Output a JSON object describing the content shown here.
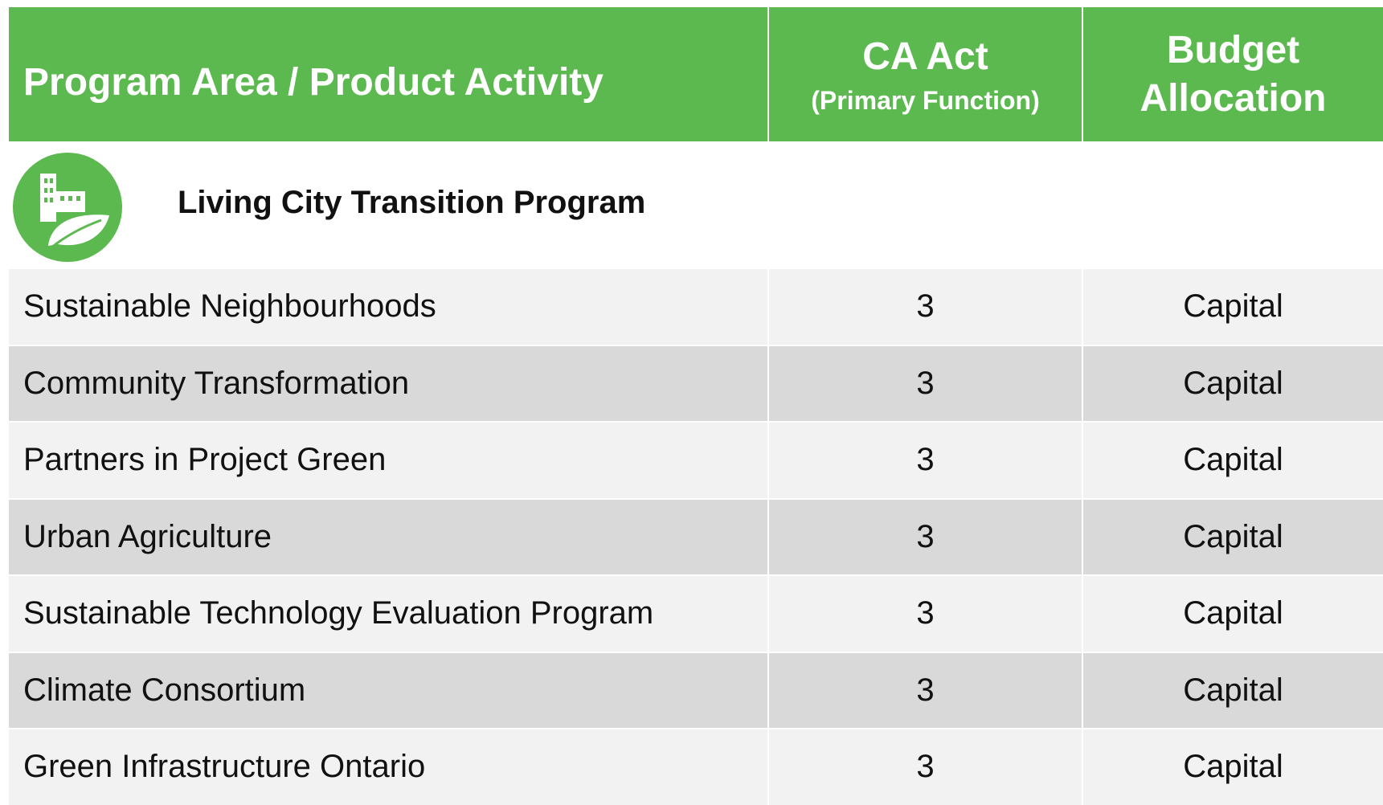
{
  "table": {
    "header": [
      {
        "title": "Program Area / Product Activity"
      },
      {
        "title": "CA Act",
        "subtitle": "(Primary Function)"
      },
      {
        "title": "Budget Allocation"
      }
    ],
    "section": "Living City Transition Program",
    "rows": [
      [
        "Sustainable Neighbourhoods",
        3,
        "Capital"
      ],
      [
        "Community Transformation",
        3,
        "Capital"
      ],
      [
        "Partners in Project Green",
        3,
        "Capital"
      ],
      [
        "Urban Agriculture",
        3,
        "Capital"
      ],
      [
        "Sustainable Technology Evaluation Program",
        3,
        "Capital"
      ],
      [
        "Climate Consortium",
        3,
        "Capital"
      ],
      [
        "Green Infrastructure Ontario",
        3,
        "Capital"
      ]
    ]
  }
}
